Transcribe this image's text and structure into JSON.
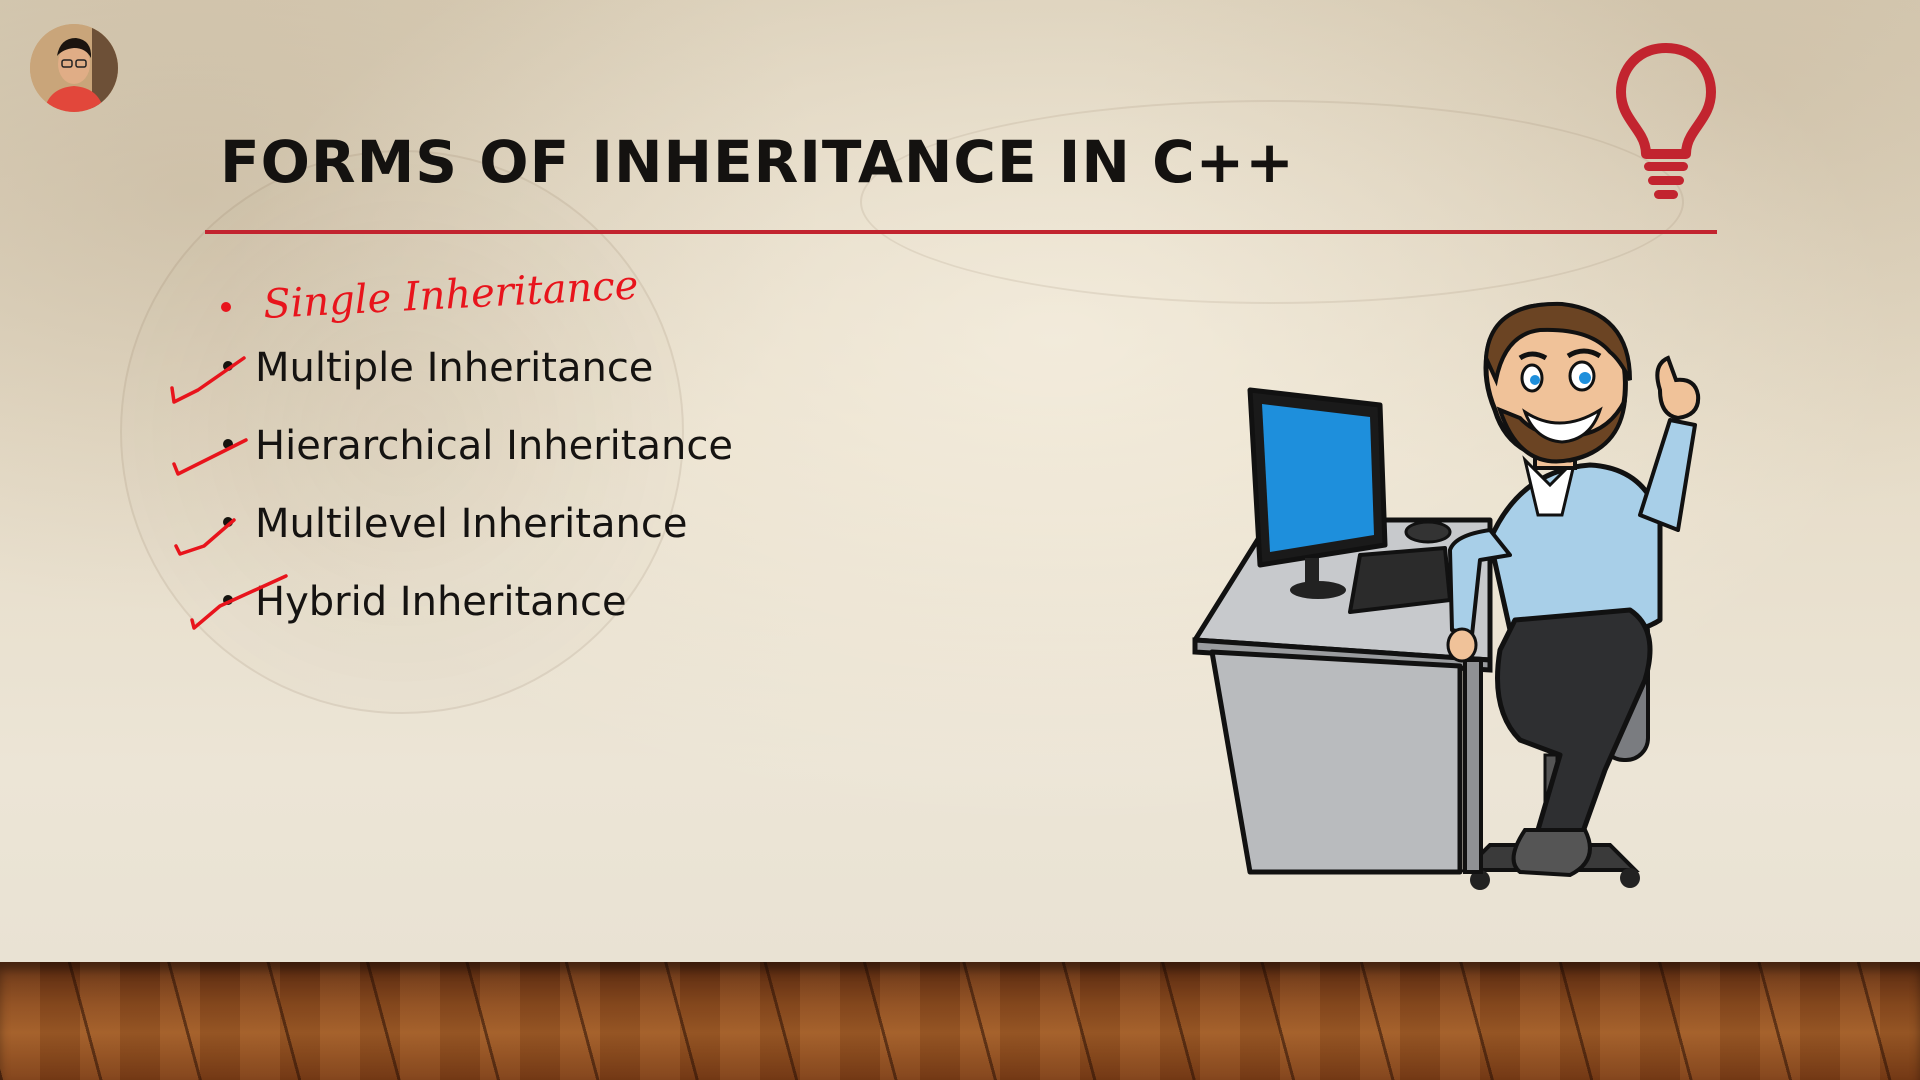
{
  "slide": {
    "title": "FORMS OF INHERITANCE IN C++",
    "handwritten_item": "Single Inheritance",
    "items": [
      "Multiple Inheritance",
      "Hierarchical Inheritance",
      "Multilevel Inheritance",
      "Hybrid Inheritance"
    ]
  },
  "icons": {
    "presenter": "presenter-avatar",
    "idea": "lightbulb-icon",
    "illustration": "developer-at-desk"
  },
  "colors": {
    "accent": "#c2242f",
    "annotation": "#e8141c",
    "screen": "#1e8fdc",
    "shirt": "#a8cfe8"
  }
}
